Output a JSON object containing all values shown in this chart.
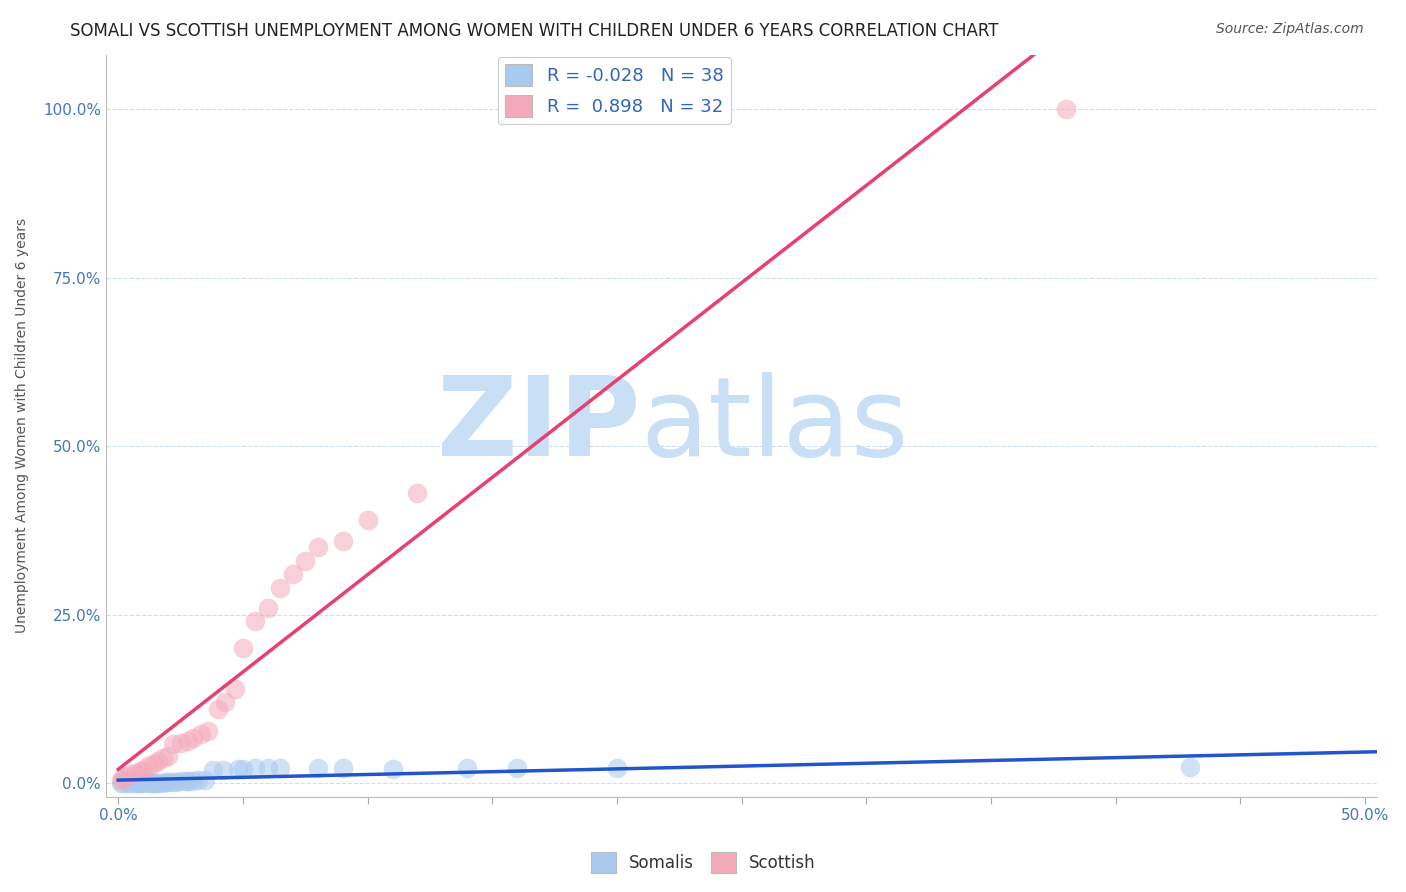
{
  "title": "SOMALI VS SCOTTISH UNEMPLOYMENT AMONG WOMEN WITH CHILDREN UNDER 6 YEARS CORRELATION CHART",
  "source": "Source: ZipAtlas.com",
  "ylabel": "Unemployment Among Women with Children Under 6 years",
  "xlabel": "",
  "xlim": [
    -0.005,
    0.505
  ],
  "ylim": [
    -0.02,
    1.08
  ],
  "xticks": [
    0.0,
    0.05,
    0.1,
    0.15,
    0.2,
    0.25,
    0.3,
    0.35,
    0.4,
    0.45,
    0.5
  ],
  "yticks": [
    0.0,
    0.25,
    0.5,
    0.75,
    1.0
  ],
  "ytick_labels": [
    "0.0%",
    "25.0%",
    "50.0%",
    "75.0%",
    "100.0%"
  ],
  "xtick_labels": [
    "0.0%",
    "",
    "",
    "",
    "",
    "",
    "",
    "",
    "",
    "",
    "50.0%"
  ],
  "somali_R": -0.028,
  "somali_N": 38,
  "scottish_R": 0.898,
  "scottish_N": 32,
  "somali_color": "#A8CAEE",
  "scottish_color": "#F4AABB",
  "somali_line_color": "#2255CC",
  "scottish_line_color": "#E84070",
  "background_color": "#FFFFFF",
  "grid_color": "#D0DFF0",
  "watermark_zip": "ZIP",
  "watermark_atlas": "atlas",
  "watermark_color": "#C8DFF5",
  "title_fontsize": 12,
  "source_fontsize": 10,
  "somali_x": [
    0.001,
    0.002,
    0.004,
    0.005,
    0.007,
    0.008,
    0.009,
    0.01,
    0.012,
    0.013,
    0.014,
    0.015,
    0.016,
    0.018,
    0.019,
    0.02,
    0.022,
    0.023,
    0.025,
    0.027,
    0.028,
    0.03,
    0.032,
    0.035,
    0.038,
    0.042,
    0.048,
    0.05,
    0.055,
    0.06,
    0.065,
    0.08,
    0.09,
    0.11,
    0.14,
    0.16,
    0.2,
    0.43
  ],
  "somali_y": [
    0.0,
    0.0,
    0.0,
    0.0,
    0.0,
    0.0,
    0.0,
    0.0,
    0.0,
    0.0,
    0.001,
    0.001,
    0.001,
    0.001,
    0.002,
    0.002,
    0.002,
    0.002,
    0.003,
    0.003,
    0.003,
    0.003,
    0.004,
    0.004,
    0.02,
    0.02,
    0.021,
    0.021,
    0.022,
    0.022,
    0.022,
    0.023,
    0.023,
    0.021,
    0.022,
    0.022,
    0.022,
    0.024
  ],
  "scottish_x": [
    0.001,
    0.002,
    0.003,
    0.005,
    0.007,
    0.009,
    0.01,
    0.012,
    0.014,
    0.016,
    0.018,
    0.02,
    0.022,
    0.025,
    0.028,
    0.03,
    0.033,
    0.036,
    0.04,
    0.043,
    0.047,
    0.05,
    0.055,
    0.06,
    0.065,
    0.07,
    0.075,
    0.08,
    0.09,
    0.1,
    0.12,
    0.38
  ],
  "scottish_y": [
    0.005,
    0.008,
    0.01,
    0.013,
    0.015,
    0.018,
    0.02,
    0.025,
    0.028,
    0.033,
    0.037,
    0.04,
    0.058,
    0.06,
    0.063,
    0.067,
    0.073,
    0.078,
    0.11,
    0.12,
    0.14,
    0.2,
    0.24,
    0.26,
    0.29,
    0.31,
    0.33,
    0.35,
    0.36,
    0.39,
    0.43,
    1.0
  ]
}
